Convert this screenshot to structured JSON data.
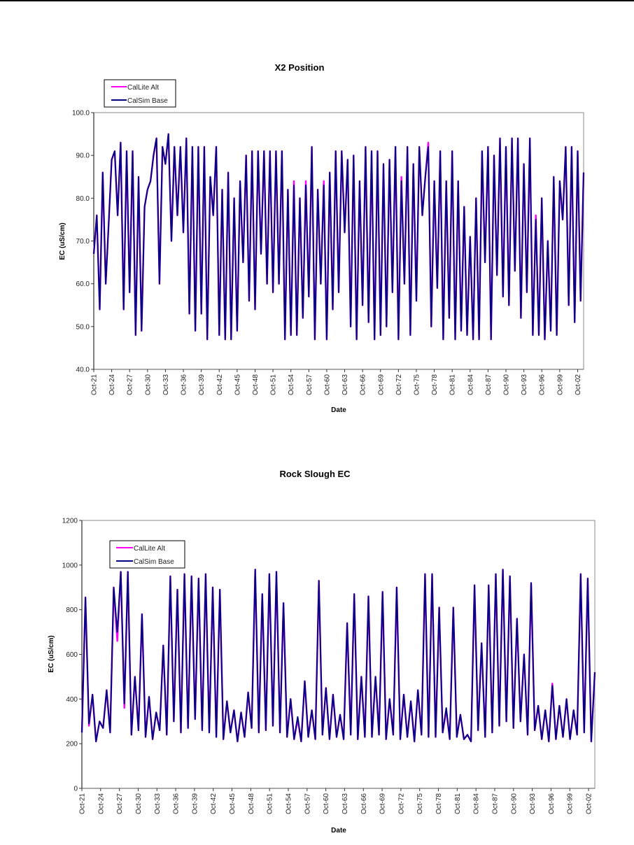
{
  "chart_data": [
    {
      "type": "line",
      "title": "X2 Position",
      "xlabel": "Date",
      "ylabel": "EC (uS/cm)",
      "ylim": [
        40,
        100
      ],
      "ytick_step": 10,
      "ytick_labels": [
        "40.0",
        "50.0",
        "60.0",
        "70.0",
        "80.0",
        "90.0",
        "100.0"
      ],
      "grid": true,
      "legend_placement": "top-left",
      "categories": [
        "Oct-21",
        "Oct-24",
        "Oct-27",
        "Oct-30",
        "Oct-33",
        "Oct-36",
        "Oct-39",
        "Oct-42",
        "Oct-45",
        "Oct-48",
        "Oct-51",
        "Oct-54",
        "Oct-57",
        "Oct-60",
        "Oct-63",
        "Oct-66",
        "Oct-69",
        "Oct-72",
        "Oct-75",
        "Oct-78",
        "Oct-81",
        "Oct-84",
        "Oct-87",
        "Oct-90",
        "Oct-93",
        "Oct-96",
        "Oct-99",
        "Oct-02"
      ],
      "x_start_year": 1921,
      "x_end_year": 2003.0,
      "series": [
        {
          "name": "CalLite Alt",
          "color": "#ff00ff",
          "values": [
            67,
            76,
            54,
            86,
            60,
            74,
            89,
            91,
            76,
            93,
            54,
            91,
            58,
            91,
            48,
            85,
            49,
            78,
            82,
            84,
            90,
            94,
            60,
            92,
            88,
            95,
            70,
            92,
            76,
            92,
            72,
            94,
            53,
            92,
            49,
            92,
            53,
            92,
            47,
            85,
            76,
            92,
            48,
            82,
            47,
            86,
            47,
            80,
            49,
            84,
            65,
            90,
            56,
            91,
            54,
            91,
            67,
            91,
            60,
            91,
            58,
            91,
            60,
            91,
            47,
            82,
            48,
            84,
            48,
            80,
            52,
            84,
            57,
            92,
            47,
            82,
            60,
            84,
            47,
            86,
            54,
            91,
            58,
            91,
            72,
            89,
            50,
            90,
            47,
            84,
            55,
            92,
            51,
            91,
            47,
            91,
            48,
            88,
            50,
            89,
            58,
            92,
            47,
            85,
            60,
            92,
            48,
            88,
            56,
            92,
            76,
            85,
            93,
            50,
            84,
            59,
            91,
            47,
            84,
            52,
            91,
            47,
            84,
            49,
            78,
            48,
            71,
            47,
            80,
            47,
            91,
            65,
            92,
            47,
            90,
            62,
            94,
            57,
            92,
            55,
            94,
            63,
            94,
            52,
            88,
            58,
            94,
            48,
            76,
            48,
            80,
            47,
            70,
            49,
            85,
            48,
            84,
            75,
            92,
            55,
            92,
            51,
            91,
            56,
            86
          ]
        },
        {
          "name": "CalSim Base",
          "color": "#000080",
          "values": [
            67,
            76,
            54,
            86,
            60,
            74,
            89,
            91,
            76,
            93,
            54,
            91,
            58,
            91,
            48,
            85,
            49,
            78,
            82,
            84,
            90,
            94,
            60,
            92,
            88,
            95,
            70,
            92,
            76,
            92,
            72,
            94,
            53,
            92,
            49,
            92,
            53,
            92,
            47,
            85,
            76,
            92,
            48,
            82,
            47,
            86,
            47,
            80,
            49,
            84,
            65,
            90,
            56,
            91,
            54,
            91,
            67,
            91,
            60,
            91,
            58,
            91,
            60,
            91,
            47,
            82,
            48,
            83,
            48,
            80,
            52,
            83,
            57,
            92,
            47,
            82,
            60,
            83,
            47,
            86,
            54,
            91,
            58,
            91,
            72,
            89,
            50,
            90,
            47,
            84,
            55,
            92,
            51,
            91,
            47,
            91,
            48,
            88,
            50,
            89,
            58,
            92,
            47,
            84,
            60,
            92,
            48,
            88,
            56,
            92,
            76,
            85,
            92,
            50,
            84,
            59,
            91,
            47,
            84,
            52,
            91,
            47,
            84,
            49,
            78,
            48,
            71,
            47,
            80,
            47,
            91,
            65,
            92,
            47,
            90,
            62,
            94,
            57,
            92,
            55,
            94,
            63,
            94,
            52,
            88,
            58,
            94,
            48,
            75,
            48,
            80,
            47,
            70,
            49,
            85,
            48,
            84,
            75,
            92,
            55,
            92,
            51,
            91,
            56,
            86
          ]
        }
      ]
    },
    {
      "type": "line",
      "title": "Rock Slough EC",
      "xlabel": "Date",
      "ylabel": "EC (uS/cm)",
      "ylim": [
        0,
        1200
      ],
      "ytick_step": 200,
      "ytick_labels": [
        "0",
        "200",
        "400",
        "600",
        "800",
        "1000",
        "1200"
      ],
      "grid": true,
      "legend_placement": "top-left",
      "categories": [
        "Oct-21",
        "Oct-24",
        "Oct-27",
        "Oct-30",
        "Oct-33",
        "Oct-36",
        "Oct-39",
        "Oct-42",
        "Oct-45",
        "Oct-48",
        "Oct-51",
        "Oct-54",
        "Oct-57",
        "Oct-60",
        "Oct-63",
        "Oct-66",
        "Oct-69",
        "Oct-72",
        "Oct-75",
        "Oct-78",
        "Oct-81",
        "Oct-84",
        "Oct-87",
        "Oct-90",
        "Oct-93",
        "Oct-96",
        "Oct-99",
        "Oct-02"
      ],
      "x_start_year": 1921,
      "x_end_year": 2003.0,
      "series": [
        {
          "name": "CalLite Alt",
          "color": "#ff00ff",
          "values": [
            250,
            855,
            280,
            420,
            210,
            300,
            270,
            440,
            250,
            900,
            660,
            970,
            360,
            970,
            240,
            500,
            260,
            780,
            230,
            410,
            220,
            340,
            260,
            640,
            240,
            950,
            300,
            890,
            250,
            960,
            270,
            950,
            310,
            940,
            260,
            960,
            250,
            900,
            230,
            890,
            220,
            390,
            250,
            350,
            210,
            340,
            230,
            430,
            270,
            980,
            250,
            870,
            260,
            960,
            280,
            970,
            250,
            830,
            230,
            400,
            220,
            310,
            210,
            480,
            230,
            350,
            220,
            930,
            240,
            450,
            220,
            420,
            230,
            330,
            220,
            740,
            240,
            870,
            220,
            500,
            230,
            860,
            230,
            500,
            240,
            880,
            220,
            400,
            240,
            900,
            220,
            420,
            230,
            390,
            210,
            440,
            240,
            960,
            230,
            960,
            230,
            810,
            250,
            350,
            220,
            810,
            230,
            330,
            220,
            240,
            210,
            910,
            260,
            650,
            230,
            910,
            250,
            960,
            280,
            980,
            300,
            950,
            270,
            760,
            300,
            600,
            240,
            920,
            260,
            370,
            220,
            350,
            210,
            470,
            220,
            370,
            230,
            400,
            220,
            350,
            240,
            960,
            250,
            940,
            210,
            520
          ]
        },
        {
          "name": "CalSim Base",
          "color": "#000080",
          "values": [
            250,
            855,
            290,
            420,
            210,
            300,
            270,
            440,
            250,
            900,
            700,
            970,
            380,
            970,
            240,
            500,
            260,
            780,
            230,
            410,
            220,
            340,
            260,
            640,
            240,
            950,
            300,
            890,
            250,
            960,
            270,
            950,
            310,
            940,
            260,
            960,
            250,
            900,
            230,
            890,
            220,
            390,
            250,
            350,
            210,
            340,
            230,
            430,
            270,
            980,
            250,
            870,
            260,
            960,
            280,
            970,
            250,
            830,
            230,
            400,
            220,
            320,
            210,
            480,
            230,
            350,
            220,
            930,
            240,
            450,
            220,
            420,
            230,
            330,
            220,
            740,
            240,
            870,
            220,
            500,
            230,
            860,
            230,
            500,
            240,
            880,
            220,
            400,
            240,
            900,
            220,
            420,
            230,
            390,
            210,
            440,
            240,
            960,
            230,
            960,
            230,
            810,
            250,
            360,
            220,
            810,
            230,
            330,
            220,
            240,
            210,
            910,
            260,
            650,
            230,
            910,
            250,
            960,
            280,
            980,
            300,
            950,
            270,
            760,
            300,
            600,
            240,
            920,
            260,
            370,
            220,
            350,
            210,
            460,
            220,
            370,
            230,
            400,
            220,
            350,
            240,
            960,
            250,
            940,
            210,
            520
          ]
        }
      ]
    }
  ]
}
